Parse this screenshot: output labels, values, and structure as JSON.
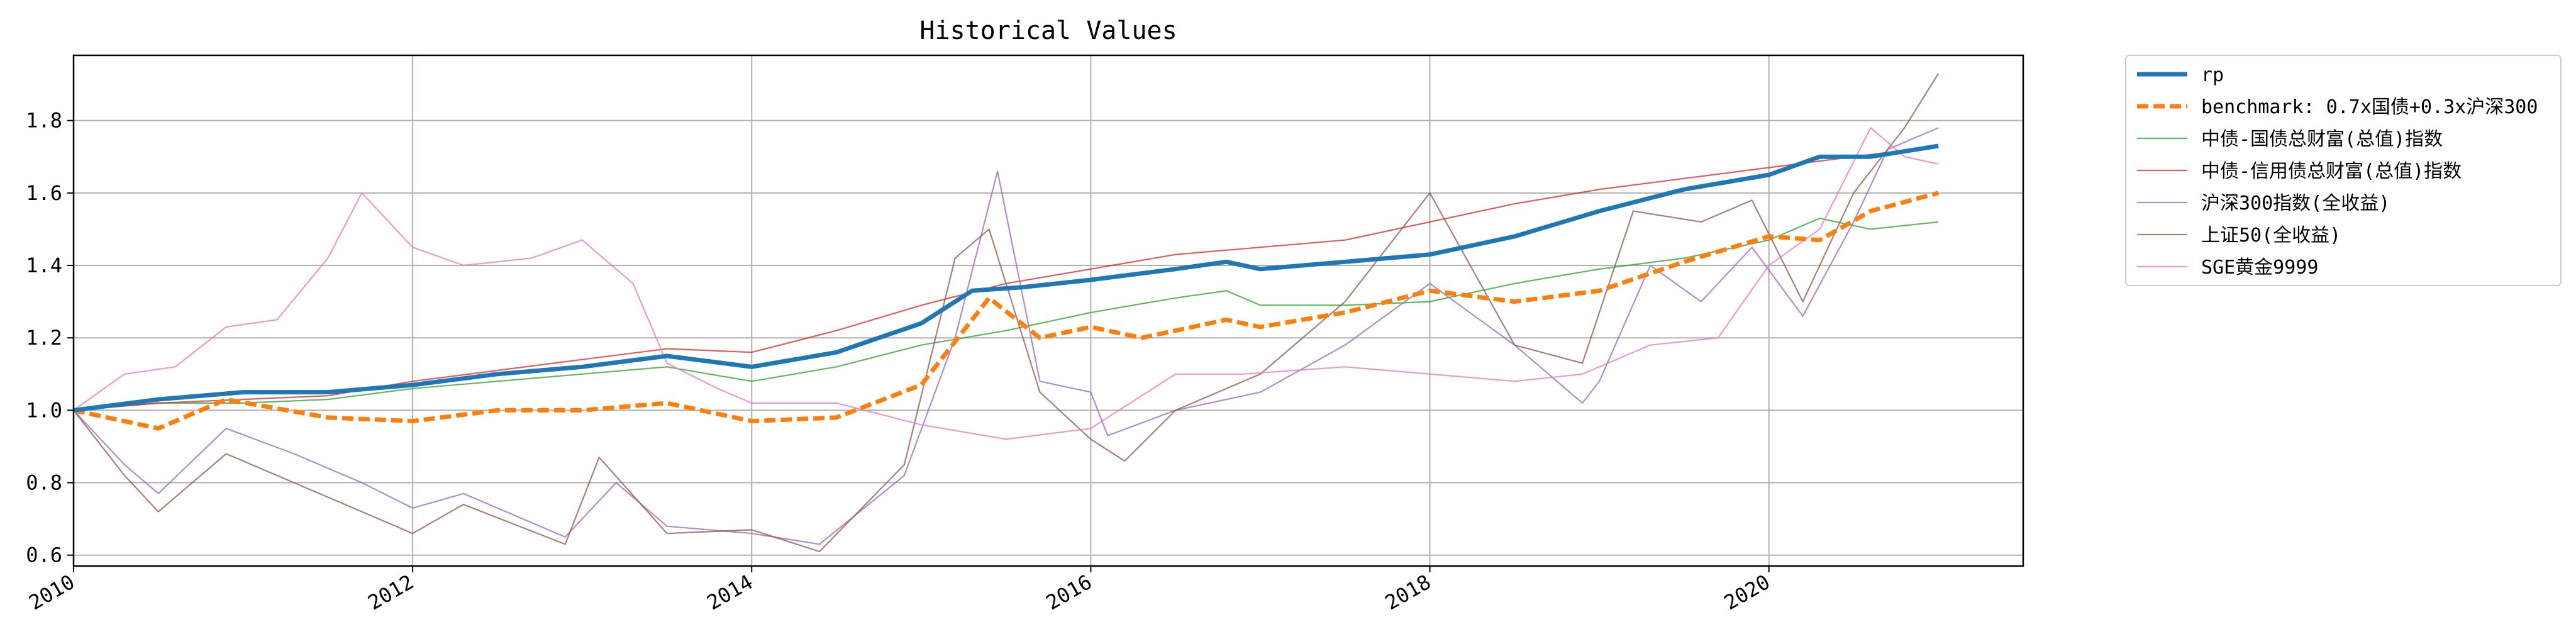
{
  "chart_data": {
    "type": "line",
    "title": "Historical Values",
    "xlabel": "",
    "ylabel": "",
    "x_ticks": [
      "2010",
      "2012",
      "2014",
      "2016",
      "2018",
      "2020"
    ],
    "y_ticks": [
      "0.6",
      "0.8",
      "1.0",
      "1.2",
      "1.4",
      "1.6",
      "1.8"
    ],
    "xlim": [
      2010.0,
      2021.5
    ],
    "ylim": [
      0.57,
      1.98
    ],
    "grid": true,
    "legend_position": "outside-right",
    "series": [
      {
        "name": "rp",
        "color": "#1f77b4",
        "style": "solid-thick",
        "points": [
          [
            2010.0,
            1.0
          ],
          [
            2010.5,
            1.03
          ],
          [
            2011.0,
            1.05
          ],
          [
            2011.5,
            1.05
          ],
          [
            2012.0,
            1.07
          ],
          [
            2012.5,
            1.1
          ],
          [
            2013.0,
            1.12
          ],
          [
            2013.5,
            1.15
          ],
          [
            2014.0,
            1.12
          ],
          [
            2014.5,
            1.16
          ],
          [
            2015.0,
            1.24
          ],
          [
            2015.3,
            1.33
          ],
          [
            2015.6,
            1.34
          ],
          [
            2016.0,
            1.36
          ],
          [
            2016.5,
            1.39
          ],
          [
            2016.8,
            1.41
          ],
          [
            2017.0,
            1.39
          ],
          [
            2017.5,
            1.41
          ],
          [
            2018.0,
            1.43
          ],
          [
            2018.5,
            1.48
          ],
          [
            2019.0,
            1.55
          ],
          [
            2019.5,
            1.61
          ],
          [
            2020.0,
            1.65
          ],
          [
            2020.3,
            1.7
          ],
          [
            2020.6,
            1.7
          ],
          [
            2021.0,
            1.73
          ]
        ]
      },
      {
        "name": "benchmark: 0.7x国债+0.3x沪深300",
        "color": "#ff7f0e",
        "style": "dashed",
        "points": [
          [
            2010.0,
            1.0
          ],
          [
            2010.5,
            0.95
          ],
          [
            2010.9,
            1.03
          ],
          [
            2011.5,
            0.98
          ],
          [
            2012.0,
            0.97
          ],
          [
            2012.5,
            1.0
          ],
          [
            2013.0,
            1.0
          ],
          [
            2013.5,
            1.02
          ],
          [
            2014.0,
            0.97
          ],
          [
            2014.5,
            0.98
          ],
          [
            2015.0,
            1.07
          ],
          [
            2015.4,
            1.31
          ],
          [
            2015.7,
            1.2
          ],
          [
            2016.0,
            1.23
          ],
          [
            2016.3,
            1.2
          ],
          [
            2016.8,
            1.25
          ],
          [
            2017.0,
            1.23
          ],
          [
            2017.5,
            1.27
          ],
          [
            2018.0,
            1.33
          ],
          [
            2018.5,
            1.3
          ],
          [
            2019.0,
            1.33
          ],
          [
            2019.5,
            1.41
          ],
          [
            2020.0,
            1.48
          ],
          [
            2020.3,
            1.47
          ],
          [
            2020.6,
            1.55
          ],
          [
            2021.0,
            1.6
          ]
        ]
      },
      {
        "name": "中债-国债总财富(总值)指数",
        "color": "#2ca02c",
        "style": "thin",
        "points": [
          [
            2010.0,
            1.0
          ],
          [
            2010.5,
            1.02
          ],
          [
            2011.0,
            1.02
          ],
          [
            2011.5,
            1.03
          ],
          [
            2012.0,
            1.06
          ],
          [
            2012.5,
            1.08
          ],
          [
            2013.0,
            1.1
          ],
          [
            2013.5,
            1.12
          ],
          [
            2014.0,
            1.08
          ],
          [
            2014.5,
            1.12
          ],
          [
            2015.0,
            1.18
          ],
          [
            2015.5,
            1.22
          ],
          [
            2016.0,
            1.27
          ],
          [
            2016.5,
            1.31
          ],
          [
            2016.8,
            1.33
          ],
          [
            2017.0,
            1.29
          ],
          [
            2017.5,
            1.29
          ],
          [
            2018.0,
            1.3
          ],
          [
            2018.5,
            1.35
          ],
          [
            2019.0,
            1.39
          ],
          [
            2019.5,
            1.42
          ],
          [
            2020.0,
            1.47
          ],
          [
            2020.3,
            1.53
          ],
          [
            2020.6,
            1.5
          ],
          [
            2021.0,
            1.52
          ]
        ]
      },
      {
        "name": "中债-信用债总财富(总值)指数",
        "color": "#d62728",
        "style": "thin",
        "points": [
          [
            2010.0,
            1.0
          ],
          [
            2010.5,
            1.02
          ],
          [
            2011.0,
            1.03
          ],
          [
            2011.5,
            1.04
          ],
          [
            2012.0,
            1.08
          ],
          [
            2012.5,
            1.11
          ],
          [
            2013.0,
            1.14
          ],
          [
            2013.5,
            1.17
          ],
          [
            2014.0,
            1.16
          ],
          [
            2014.5,
            1.22
          ],
          [
            2015.0,
            1.29
          ],
          [
            2015.5,
            1.35
          ],
          [
            2016.0,
            1.39
          ],
          [
            2016.5,
            1.43
          ],
          [
            2017.0,
            1.45
          ],
          [
            2017.5,
            1.47
          ],
          [
            2018.0,
            1.52
          ],
          [
            2018.5,
            1.57
          ],
          [
            2019.0,
            1.61
          ],
          [
            2019.5,
            1.64
          ],
          [
            2020.0,
            1.67
          ],
          [
            2020.5,
            1.7
          ],
          [
            2021.0,
            1.73
          ]
        ]
      },
      {
        "name": "沪深300指数(全收益)",
        "color": "#9467bd",
        "style": "thin",
        "points": [
          [
            2010.0,
            1.0
          ],
          [
            2010.3,
            0.85
          ],
          [
            2010.5,
            0.77
          ],
          [
            2010.9,
            0.95
          ],
          [
            2011.3,
            0.88
          ],
          [
            2011.7,
            0.8
          ],
          [
            2012.0,
            0.73
          ],
          [
            2012.3,
            0.77
          ],
          [
            2012.9,
            0.65
          ],
          [
            2013.2,
            0.8
          ],
          [
            2013.5,
            0.68
          ],
          [
            2014.0,
            0.66
          ],
          [
            2014.4,
            0.63
          ],
          [
            2014.9,
            0.82
          ],
          [
            2015.2,
            1.2
          ],
          [
            2015.45,
            1.66
          ],
          [
            2015.7,
            1.08
          ],
          [
            2016.0,
            1.05
          ],
          [
            2016.1,
            0.93
          ],
          [
            2016.5,
            1.0
          ],
          [
            2017.0,
            1.05
          ],
          [
            2017.5,
            1.18
          ],
          [
            2018.0,
            1.35
          ],
          [
            2018.5,
            1.18
          ],
          [
            2018.9,
            1.02
          ],
          [
            2019.0,
            1.08
          ],
          [
            2019.3,
            1.4
          ],
          [
            2019.6,
            1.3
          ],
          [
            2019.9,
            1.45
          ],
          [
            2020.2,
            1.26
          ],
          [
            2020.5,
            1.52
          ],
          [
            2020.7,
            1.72
          ],
          [
            2021.0,
            1.78
          ]
        ]
      },
      {
        "name": "上证50(全收益)",
        "color": "#8c564b",
        "style": "thin",
        "points": [
          [
            2010.0,
            1.0
          ],
          [
            2010.3,
            0.82
          ],
          [
            2010.5,
            0.72
          ],
          [
            2010.9,
            0.88
          ],
          [
            2011.3,
            0.8
          ],
          [
            2011.7,
            0.72
          ],
          [
            2012.0,
            0.66
          ],
          [
            2012.3,
            0.74
          ],
          [
            2012.9,
            0.63
          ],
          [
            2013.1,
            0.87
          ],
          [
            2013.5,
            0.66
          ],
          [
            2014.0,
            0.67
          ],
          [
            2014.4,
            0.61
          ],
          [
            2014.9,
            0.85
          ],
          [
            2015.2,
            1.42
          ],
          [
            2015.4,
            1.5
          ],
          [
            2015.7,
            1.05
          ],
          [
            2016.0,
            0.92
          ],
          [
            2016.2,
            0.86
          ],
          [
            2016.5,
            1.0
          ],
          [
            2017.0,
            1.1
          ],
          [
            2017.5,
            1.3
          ],
          [
            2018.0,
            1.6
          ],
          [
            2018.5,
            1.18
          ],
          [
            2018.9,
            1.13
          ],
          [
            2019.2,
            1.55
          ],
          [
            2019.6,
            1.52
          ],
          [
            2019.9,
            1.58
          ],
          [
            2020.2,
            1.3
          ],
          [
            2020.5,
            1.6
          ],
          [
            2020.8,
            1.78
          ],
          [
            2021.0,
            1.93
          ]
        ]
      },
      {
        "name": "SGE黄金9999",
        "color": "#e377c2",
        "style": "thin",
        "points": [
          [
            2010.0,
            1.0
          ],
          [
            2010.3,
            1.1
          ],
          [
            2010.6,
            1.12
          ],
          [
            2010.9,
            1.23
          ],
          [
            2011.2,
            1.25
          ],
          [
            2011.5,
            1.42
          ],
          [
            2011.7,
            1.6
          ],
          [
            2012.0,
            1.45
          ],
          [
            2012.3,
            1.4
          ],
          [
            2012.7,
            1.42
          ],
          [
            2013.0,
            1.47
          ],
          [
            2013.3,
            1.35
          ],
          [
            2013.5,
            1.13
          ],
          [
            2013.8,
            1.06
          ],
          [
            2014.0,
            1.02
          ],
          [
            2014.5,
            1.02
          ],
          [
            2015.0,
            0.96
          ],
          [
            2015.5,
            0.92
          ],
          [
            2016.0,
            0.95
          ],
          [
            2016.5,
            1.1
          ],
          [
            2016.9,
            1.1
          ],
          [
            2017.5,
            1.12
          ],
          [
            2018.0,
            1.1
          ],
          [
            2018.5,
            1.08
          ],
          [
            2018.9,
            1.1
          ],
          [
            2019.3,
            1.18
          ],
          [
            2019.7,
            1.2
          ],
          [
            2020.0,
            1.4
          ],
          [
            2020.3,
            1.5
          ],
          [
            2020.6,
            1.78
          ],
          [
            2020.8,
            1.7
          ],
          [
            2021.0,
            1.68
          ]
        ]
      }
    ]
  }
}
